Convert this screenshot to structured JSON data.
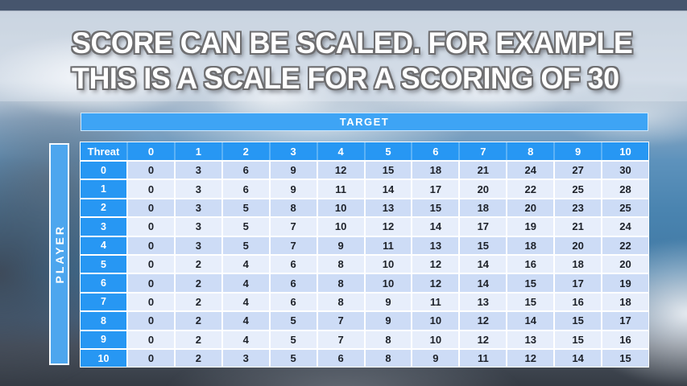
{
  "slide": {
    "title_line1": "SCORE CAN BE SCALED. FOR EXAMPLE",
    "title_line2": "THIS IS A SCALE FOR A SCORING OF 30"
  },
  "table": {
    "target_label": "TARGET",
    "player_label": "PLAYER",
    "corner_label": "Threat",
    "target_columns": [
      "0",
      "1",
      "2",
      "3",
      "4",
      "5",
      "6",
      "7",
      "8",
      "9",
      "10"
    ],
    "player_rows": [
      "0",
      "1",
      "2",
      "3",
      "4",
      "5",
      "6",
      "7",
      "8",
      "9",
      "10"
    ],
    "scores": [
      [
        0,
        3,
        6,
        9,
        12,
        15,
        18,
        21,
        24,
        27,
        30
      ],
      [
        0,
        3,
        6,
        9,
        11,
        14,
        17,
        20,
        22,
        25,
        28
      ],
      [
        0,
        3,
        5,
        8,
        10,
        13,
        15,
        18,
        20,
        23,
        25
      ],
      [
        0,
        3,
        5,
        7,
        10,
        12,
        14,
        17,
        19,
        21,
        24
      ],
      [
        0,
        3,
        5,
        7,
        9,
        11,
        13,
        15,
        18,
        20,
        22
      ],
      [
        0,
        2,
        4,
        6,
        8,
        10,
        12,
        14,
        16,
        18,
        20
      ],
      [
        0,
        2,
        4,
        6,
        8,
        10,
        12,
        14,
        15,
        17,
        19
      ],
      [
        0,
        2,
        4,
        6,
        8,
        9,
        11,
        13,
        15,
        16,
        18
      ],
      [
        0,
        2,
        4,
        5,
        7,
        9,
        10,
        12,
        14,
        15,
        17
      ],
      [
        0,
        2,
        4,
        5,
        7,
        8,
        10,
        12,
        13,
        15,
        16
      ],
      [
        0,
        2,
        3,
        5,
        6,
        8,
        9,
        11,
        12,
        14,
        15
      ]
    ]
  },
  "colors": {
    "header_blue": "#2797f3",
    "target_bar_blue": "#3ea4f5",
    "player_bar_blue": "#4da6ee",
    "header_divider_blue": "#5cb2f6",
    "row_even": "#cddcf6",
    "row_odd": "#e7eefb",
    "cell_text": "#1d2129",
    "title_text": "#ffffff"
  }
}
